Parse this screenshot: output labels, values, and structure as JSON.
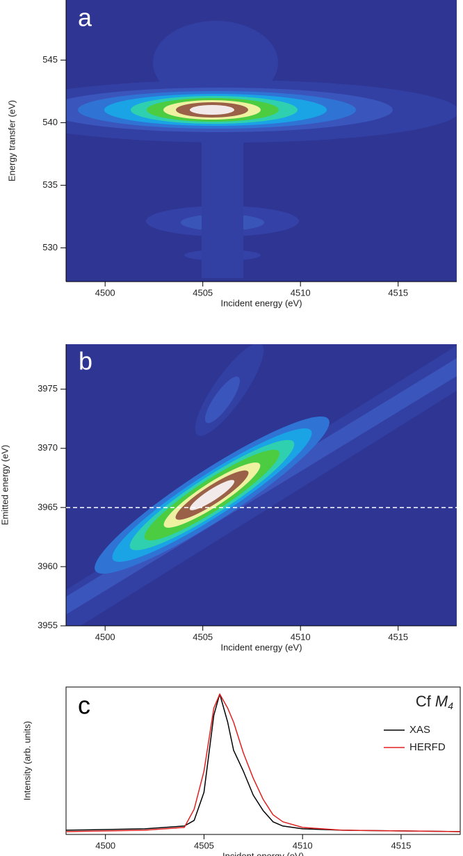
{
  "chart_data": [
    {
      "type": "contour",
      "panel_label": "a",
      "xlabel": "Incident energy (eV)",
      "ylabel": "Energy transfer (eV)",
      "xlim": [
        4498,
        4518
      ],
      "xticks": [
        4500,
        4505,
        4510,
        4515
      ],
      "ylim": [
        527.3,
        549.8
      ],
      "yticks": [
        530,
        535,
        540,
        545
      ]
    },
    {
      "type": "contour",
      "panel_label": "b",
      "xlabel": "Incident energy (eV)",
      "ylabel": "Emitted energy (eV)",
      "xlim": [
        4498,
        4518
      ],
      "xticks": [
        4500,
        4505,
        4510,
        4515
      ],
      "ylim": [
        3955,
        3978.8
      ],
      "yticks": [
        3955,
        3960,
        3965,
        3970,
        3975
      ],
      "reference_line": 3965
    },
    {
      "type": "line",
      "panel_label": "c",
      "xlabel": "Incident energy (eV)",
      "ylabel": "Intensity (arb. units)",
      "annotation": {
        "element": "Cf",
        "edge": "M",
        "edge_sub": "4"
      },
      "xlim": [
        4498,
        4518
      ],
      "xticks": [
        4500,
        4505,
        4510,
        4515
      ],
      "ylim": [
        0,
        1.05
      ],
      "legend": "upper right",
      "x": [
        4498,
        4502,
        4504,
        4504.5,
        4505,
        4505.5,
        4505.8,
        4506.2,
        4506.5,
        4507,
        4507.5,
        4508,
        4508.5,
        4509,
        4510,
        4512,
        4518
      ],
      "series": [
        {
          "name": "XAS",
          "color": "#000000",
          "values": [
            0.03,
            0.04,
            0.06,
            0.1,
            0.3,
            0.85,
            1.0,
            0.8,
            0.6,
            0.45,
            0.28,
            0.17,
            0.09,
            0.06,
            0.04,
            0.03,
            0.02
          ]
        },
        {
          "name": "HERFD",
          "color": "#e02020",
          "values": [
            0.02,
            0.03,
            0.05,
            0.18,
            0.45,
            0.9,
            1.0,
            0.9,
            0.8,
            0.58,
            0.4,
            0.25,
            0.14,
            0.09,
            0.05,
            0.03,
            0.02
          ]
        }
      ]
    }
  ]
}
